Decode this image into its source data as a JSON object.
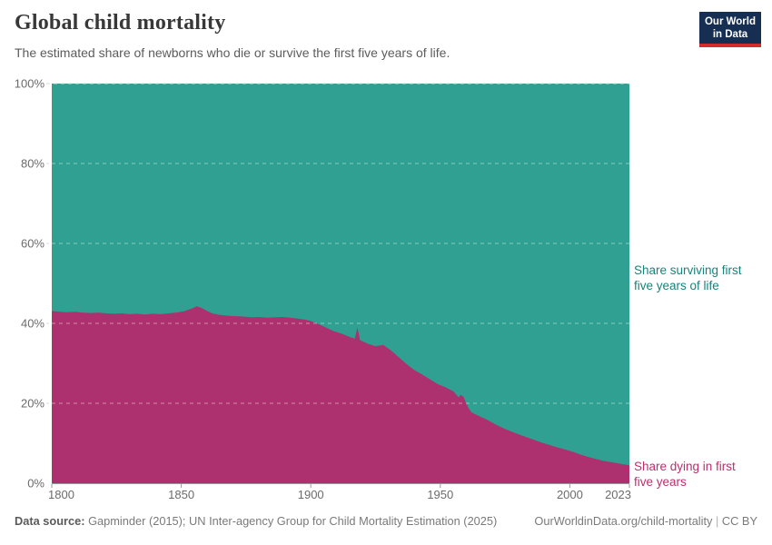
{
  "header": {
    "title": "Global child mortality",
    "subtitle": "The estimated share of newborns who die or survive the first five years of life.",
    "logo": {
      "line1": "Our World",
      "line2": "in Data",
      "bg_color": "#152e52",
      "stripe_color": "#d42b2b"
    }
  },
  "annotations": {
    "surviving": {
      "line1": "Share surviving first",
      "line2": "five years of life",
      "color": "#18837b"
    },
    "dying": {
      "line1": "Share dying in first",
      "line2": "five years",
      "color": "#bf2d6e"
    }
  },
  "footer": {
    "datasource_label": "Data source:",
    "datasource_text": " Gapminder (2015); UN Inter-agency Group for Child Mortality Estimation (2025)",
    "url": "OurWorldinData.org/child-mortality",
    "separator": " | ",
    "license": "CC BY"
  },
  "chart_data": {
    "type": "area",
    "stacked": true,
    "percent_stacked": true,
    "title": "Global child mortality",
    "xlabel": "",
    "ylabel": "",
    "xlim": [
      1800,
      2023
    ],
    "ylim": [
      0,
      100
    ],
    "x_ticks": [
      1800,
      1850,
      1900,
      1950,
      2000,
      2023
    ],
    "x_tick_labels": [
      "1800",
      "1850",
      "1900",
      "1950",
      "2000",
      "2023"
    ],
    "y_ticks": [
      0,
      20,
      40,
      60,
      80,
      100
    ],
    "y_tick_labels": [
      "0%",
      "20%",
      "40%",
      "60%",
      "80%",
      "100%"
    ],
    "grid": "horizontal dashed",
    "legend_position": "right-of-plot",
    "axis_color": "#999999",
    "series": [
      {
        "name": "Share dying in first five years",
        "color": "#ad316e",
        "years": [
          1800,
          1803,
          1806,
          1809,
          1812,
          1815,
          1818,
          1821,
          1824,
          1827,
          1830,
          1833,
          1836,
          1839,
          1842,
          1845,
          1848,
          1851,
          1854,
          1856,
          1858,
          1860,
          1862,
          1865,
          1868,
          1871,
          1874,
          1877,
          1880,
          1883,
          1886,
          1889,
          1892,
          1895,
          1898,
          1900,
          1903,
          1906,
          1909,
          1912,
          1915,
          1917,
          1918,
          1919,
          1922,
          1925,
          1928,
          1931,
          1934,
          1937,
          1940,
          1943,
          1946,
          1949,
          1952,
          1955,
          1956,
          1957,
          1958,
          1959,
          1960,
          1961,
          1962,
          1963,
          1964,
          1965,
          1966,
          1968,
          1970,
          1972,
          1975,
          1978,
          1980,
          1983,
          1986,
          1989,
          1992,
          1995,
          1998,
          2001,
          2004,
          2007,
          2010,
          2013,
          2016,
          2019,
          2023
        ],
        "share_percent": [
          43.1,
          42.9,
          42.8,
          42.9,
          42.7,
          42.6,
          42.7,
          42.5,
          42.4,
          42.5,
          42.3,
          42.4,
          42.2,
          42.4,
          42.3,
          42.5,
          42.7,
          43.0,
          43.7,
          44.3,
          43.8,
          43.1,
          42.5,
          42.1,
          41.9,
          41.8,
          41.7,
          41.5,
          41.6,
          41.4,
          41.5,
          41.6,
          41.4,
          41.2,
          40.9,
          40.6,
          39.8,
          38.9,
          38.0,
          37.4,
          36.6,
          36.2,
          39.0,
          35.8,
          34.9,
          34.3,
          34.6,
          33.2,
          31.5,
          29.8,
          28.3,
          27.2,
          26.0,
          24.8,
          24.0,
          23.0,
          22.3,
          21.5,
          22.1,
          21.6,
          20.0,
          18.7,
          17.8,
          17.4,
          17.1,
          16.8,
          16.5,
          15.9,
          15.2,
          14.5,
          13.6,
          12.8,
          12.3,
          11.6,
          10.9,
          10.2,
          9.6,
          9.0,
          8.5,
          7.9,
          7.2,
          6.6,
          6.1,
          5.6,
          5.3,
          4.9,
          4.5
        ]
      },
      {
        "name": "Share surviving first five years of life",
        "color": "#2fa092",
        "values_rule": "stacked complement: 100 minus 'Share dying in first five years' for every year (areas sum to 100%)"
      }
    ]
  }
}
